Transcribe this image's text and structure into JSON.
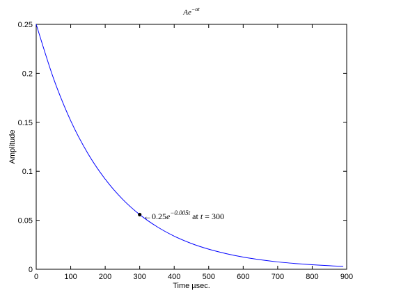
{
  "chart_data": {
    "type": "line",
    "title": "Ae",
    "title_superscript": "−αt",
    "xlabel": "Time µsec.",
    "ylabel": "Amplitude",
    "xlim": [
      0,
      900
    ],
    "ylim": [
      0,
      0.25
    ],
    "x_ticks": [
      0,
      100,
      200,
      300,
      400,
      500,
      600,
      700,
      800,
      900
    ],
    "x_tick_labels": [
      "0",
      "100",
      "200",
      "300",
      "400",
      "500",
      "600",
      "700",
      "800",
      "900"
    ],
    "y_ticks": [
      0,
      0.05,
      0.1,
      0.15,
      0.2,
      0.25
    ],
    "y_tick_labels": [
      "0",
      "0.05",
      "0.1",
      "0.15",
      "0.2",
      "0.25"
    ],
    "grid": false,
    "series": [
      {
        "color": "#0000ff",
        "x": [
          0,
          50,
          100,
          150,
          200,
          250,
          300,
          350,
          400,
          450,
          500,
          550,
          600,
          650,
          700,
          750,
          800,
          850,
          890
        ],
        "y": [
          0.25,
          0.195,
          0.1516,
          0.1181,
          0.092,
          0.0716,
          0.0558,
          0.0435,
          0.0338,
          0.0263,
          0.0205,
          0.016,
          0.0124,
          0.0097,
          0.0075,
          0.0059,
          0.0046,
          0.0036,
          0.0029
        ]
      }
    ],
    "marker": {
      "x": 300,
      "y": 0.0558
    },
    "annotation": {
      "arrow": "←",
      "text_prefix": "0.25",
      "e": "e",
      "exponent": "−0.005t",
      "text_mid": " at ",
      "var": "t",
      "text_suffix": " = 300"
    }
  }
}
